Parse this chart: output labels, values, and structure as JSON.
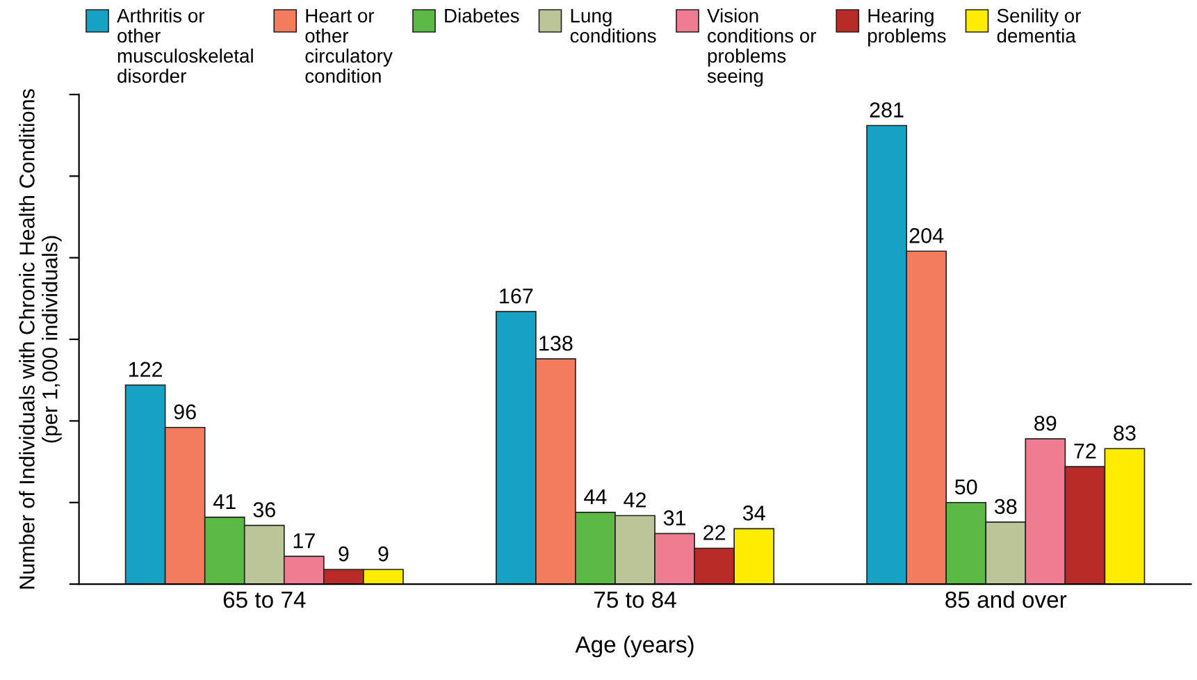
{
  "chart_data": {
    "type": "bar",
    "xlabel": "Age (years)",
    "ylabel": "Number of Individuals with Chronic Health Conditions\n(per 1,000 individuals)",
    "categories": [
      "65 to 74",
      "75 to 84",
      "85 and over"
    ],
    "series": [
      {
        "name": "Arthritis or\nother\nmusculoskeletal\ndisorder",
        "color": "#17a2c4",
        "values": [
          122,
          167,
          281
        ]
      },
      {
        "name": "Heart or\nother\ncirculatory\ncondition",
        "color": "#f47c5e",
        "values": [
          96,
          138,
          204
        ]
      },
      {
        "name": "Diabetes",
        "color": "#5cb946",
        "values": [
          41,
          44,
          50
        ]
      },
      {
        "name": "Lung\nconditions",
        "color": "#bcc597",
        "values": [
          36,
          42,
          38
        ]
      },
      {
        "name": "Vision\nconditions or\nproblems\nseeing",
        "color": "#f07c92",
        "values": [
          17,
          31,
          89
        ]
      },
      {
        "name": "Hearing\nproblems",
        "color": "#b92b27",
        "values": [
          9,
          22,
          72
        ]
      },
      {
        "name": "Senility or\ndementia",
        "color": "#ffec00",
        "values": [
          9,
          34,
          83
        ]
      }
    ],
    "ylim": [
      0,
      300
    ],
    "yticks": [
      {
        "value": 0,
        "label": null
      },
      {
        "value": 50,
        "label": null
      },
      {
        "value": 100,
        "label": null
      },
      {
        "value": 150,
        "label": null
      },
      {
        "value": 200,
        "label": null
      },
      {
        "value": 250,
        "label": null
      },
      {
        "value": 300,
        "label": null
      }
    ],
    "tick_labels": "x",
    "data_labels": true,
    "grid": false,
    "legend": "top"
  }
}
